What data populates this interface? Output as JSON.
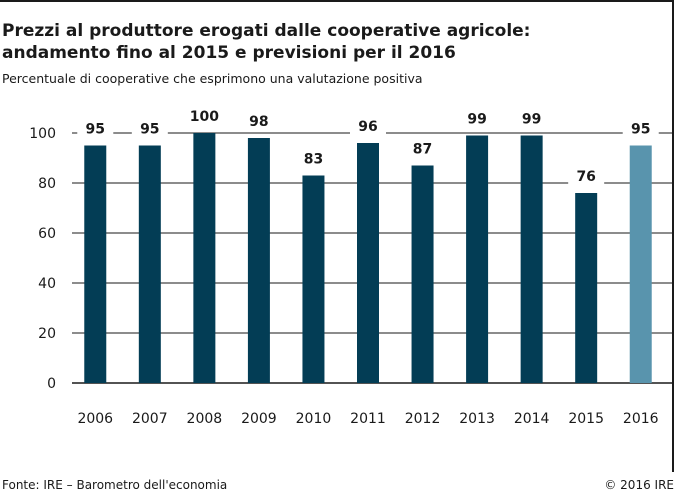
{
  "header": {
    "title_line1": "Prezzi al produttore erogati dalle cooperative agricole:",
    "title_line2": "andamento fino al 2015 e previsioni per il 2016",
    "subtitle": "Percentuale di cooperative che esprimono una valutazione positiva"
  },
  "footer": {
    "source": "Fonte: IRE – Barometro dell'economia",
    "copyright": "© 2016 IRE"
  },
  "colors": {
    "bar": "#033d55",
    "forecast_bar": "#5994ad",
    "gridline": "#1a1a1a"
  },
  "chart_data": {
    "type": "bar",
    "categories": [
      "2006",
      "2007",
      "2008",
      "2009",
      "2010",
      "2011",
      "2012",
      "2013",
      "2014",
      "2015",
      "2016"
    ],
    "values": [
      95,
      95,
      100,
      98,
      83,
      96,
      87,
      99,
      99,
      76,
      95
    ],
    "forecast_categories": [
      "2016"
    ],
    "data_labels": [
      "95",
      "95",
      "100",
      "98",
      "83",
      "96",
      "87",
      "99",
      "99",
      "76",
      "95"
    ],
    "y_ticks": [
      "0",
      "20",
      "40",
      "60",
      "80",
      "100"
    ],
    "ylim": [
      0,
      100
    ],
    "grid": true
  }
}
